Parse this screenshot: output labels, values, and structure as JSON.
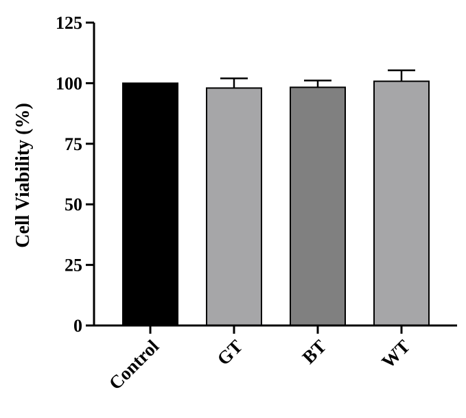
{
  "chart_data": {
    "type": "bar",
    "categories": [
      "Control",
      "GT",
      "BT",
      "WT"
    ],
    "values": [
      100,
      98,
      98.3,
      100.8
    ],
    "errors": [
      0,
      4,
      2.8,
      4.5
    ],
    "ylabel": "Cell Viability (%)",
    "xlabel": "",
    "ylim": [
      0,
      125
    ],
    "yticks": [
      0,
      25,
      50,
      75,
      100,
      125
    ],
    "ytick_labels": [
      "0",
      "25",
      "50",
      "75",
      "100",
      "125"
    ],
    "bar_colors": [
      "#000000",
      "#a6a6a8",
      "#808080",
      "#a6a6a8"
    ],
    "grid": false
  }
}
